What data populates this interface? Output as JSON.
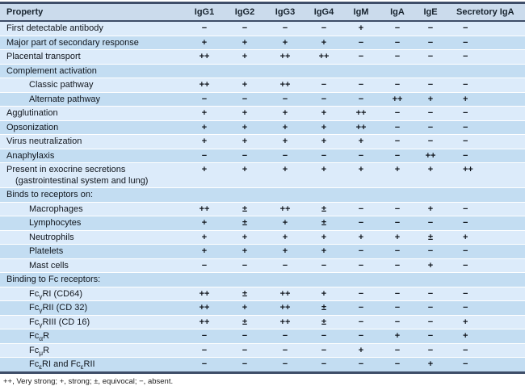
{
  "colors": {
    "row_light": "#dcebfa",
    "row_dark": "#c3ddf2",
    "header_bg": "#cbdbec",
    "border": "#3e4d68",
    "text": "#10181f"
  },
  "footnote": "++, Very strong; +, strong; ±, equivocal; −, absent.",
  "table": {
    "columns": [
      "Property",
      "IgG1",
      "IgG2",
      "IgG3",
      "IgG4",
      "IgM",
      "IgA",
      "IgE",
      "Secretory IgA"
    ],
    "rows": [
      {
        "property": "First detectable antibody",
        "values": [
          "−",
          "−",
          "−",
          "−",
          "+",
          "−",
          "−",
          "−"
        ]
      },
      {
        "property": "Major part of secondary response",
        "values": [
          "+",
          "+",
          "+",
          "+",
          "−",
          "−",
          "−",
          "−"
        ]
      },
      {
        "property": "Placental transport",
        "values": [
          "++",
          "+",
          "++",
          "++",
          "−",
          "−",
          "−",
          "−"
        ]
      },
      {
        "property": "Complement activation",
        "values": []
      },
      {
        "property": "Classic pathway",
        "indent": 1,
        "values": [
          "++",
          "+",
          "++",
          "−",
          "−",
          "−",
          "−",
          "−"
        ]
      },
      {
        "property": "Alternate pathway",
        "indent": 1,
        "values": [
          "−",
          "−",
          "−",
          "−",
          "−",
          "++",
          "+",
          "+"
        ]
      },
      {
        "property": "Agglutination",
        "values": [
          "+",
          "+",
          "+",
          "+",
          "++",
          "−",
          "−",
          "−"
        ]
      },
      {
        "property": "Opsonization",
        "values": [
          "+",
          "+",
          "+",
          "+",
          "++",
          "−",
          "−",
          "−"
        ]
      },
      {
        "property": "Virus neutralization",
        "values": [
          "+",
          "+",
          "+",
          "+",
          "+",
          "−",
          "−",
          "−"
        ]
      },
      {
        "property": "Anaphylaxis",
        "values": [
          "−",
          "−",
          "−",
          "−",
          "−",
          "−",
          "++",
          "−"
        ]
      },
      {
        "property": "Present in exocrine secretions",
        "property2": "(gastrointestinal system and lung)",
        "values": [
          "+",
          "+",
          "+",
          "+",
          "+",
          "+",
          "+",
          "++"
        ]
      },
      {
        "property": "Binds to receptors on:",
        "values": []
      },
      {
        "property": "Macrophages",
        "indent": 1,
        "values": [
          "++",
          "±",
          "++",
          "±",
          "−",
          "−",
          "+",
          "−"
        ]
      },
      {
        "property": "Lymphocytes",
        "indent": 1,
        "values": [
          "+",
          "±",
          "+",
          "±",
          "−",
          "−",
          "−",
          "−"
        ]
      },
      {
        "property": "Neutrophils",
        "indent": 1,
        "values": [
          "+",
          "+",
          "+",
          "+",
          "+",
          "+",
          "±",
          "+"
        ]
      },
      {
        "property": "Platelets",
        "indent": 1,
        "values": [
          "+",
          "+",
          "+",
          "+",
          "−",
          "−",
          "−",
          "−"
        ]
      },
      {
        "property": "Mast cells",
        "indent": 1,
        "values": [
          "−",
          "−",
          "−",
          "−",
          "−",
          "−",
          "+",
          "−"
        ]
      },
      {
        "property": "Binding to Fc receptors:",
        "values": []
      },
      {
        "property": "FcγRI (CD64)",
        "indent": 1,
        "parts": [
          {
            "t": "Fc"
          },
          {
            "t": "γ",
            "sub": true
          },
          {
            "t": "RI (CD64)"
          }
        ],
        "values": [
          "++",
          "±",
          "++",
          "+",
          "−",
          "−",
          "−",
          "−"
        ]
      },
      {
        "property": "FcγRII (CD 32)",
        "indent": 1,
        "parts": [
          {
            "t": "Fc"
          },
          {
            "t": "γ",
            "sub": true
          },
          {
            "t": "RII (CD 32)"
          }
        ],
        "values": [
          "++",
          "+",
          "++",
          "±",
          "−",
          "−",
          "−",
          "−"
        ]
      },
      {
        "property": "FcγRIII (CD 16)",
        "indent": 1,
        "parts": [
          {
            "t": "Fc"
          },
          {
            "t": "γ",
            "sub": true
          },
          {
            "t": "RIII (CD 16)"
          }
        ],
        "values": [
          "++",
          "±",
          "++",
          "±",
          "−",
          "−",
          "−",
          "+"
        ]
      },
      {
        "property": "FcαR",
        "indent": 1,
        "parts": [
          {
            "t": "Fc"
          },
          {
            "t": "α",
            "sub": true
          },
          {
            "t": "R"
          }
        ],
        "values": [
          "−",
          "−",
          "−",
          "−",
          "−",
          "+",
          "−",
          "+"
        ]
      },
      {
        "property": "FcμR",
        "indent": 1,
        "parts": [
          {
            "t": "Fc"
          },
          {
            "t": "μ",
            "sub": true
          },
          {
            "t": "R"
          }
        ],
        "values": [
          "−",
          "−",
          "−",
          "−",
          "+",
          "−",
          "−",
          "−"
        ]
      },
      {
        "property": "FcεRI and FcεRII",
        "indent": 1,
        "parts": [
          {
            "t": "Fc"
          },
          {
            "t": "ε",
            "sub": true
          },
          {
            "t": "RI and Fc"
          },
          {
            "t": "ε",
            "sub": true
          },
          {
            "t": "RII"
          }
        ],
        "values": [
          "−",
          "−",
          "−",
          "−",
          "−",
          "−",
          "+",
          "−"
        ]
      }
    ]
  }
}
